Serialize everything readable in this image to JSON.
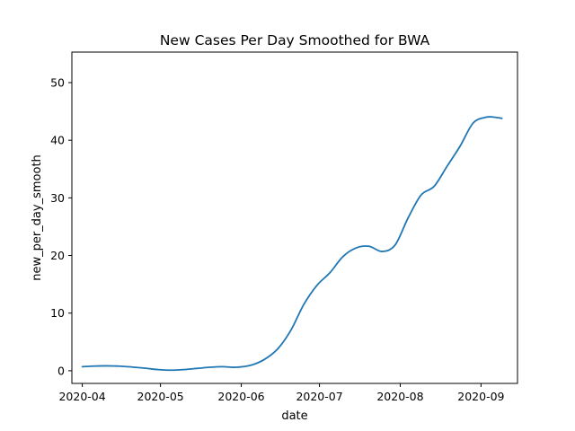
{
  "chart_data": {
    "type": "line",
    "title": "New Cases Per Day Smoothed for BWA",
    "xlabel": "date",
    "ylabel": "new_per_day_smooth",
    "xlim": [
      "2020-03-28",
      "2020-09-15"
    ],
    "ylim": [
      -2.2,
      55.3
    ],
    "x_ticks": [
      "2020-04",
      "2020-05",
      "2020-06",
      "2020-07",
      "2020-08",
      "2020-09"
    ],
    "y_ticks": [
      0,
      10,
      20,
      30,
      40,
      50
    ],
    "grid": false,
    "series_color": "#1f77b4",
    "series": [
      {
        "x": [
          "2020-04-01",
          "2020-04-05",
          "2020-04-10",
          "2020-04-15",
          "2020-04-20",
          "2020-04-25",
          "2020-04-30",
          "2020-05-05",
          "2020-05-10",
          "2020-05-15",
          "2020-05-20",
          "2020-05-25",
          "2020-05-30",
          "2020-06-05",
          "2020-06-10",
          "2020-06-15",
          "2020-06-20",
          "2020-06-25",
          "2020-06-30",
          "2020-07-05",
          "2020-07-10",
          "2020-07-15",
          "2020-07-20",
          "2020-07-25",
          "2020-07-30",
          "2020-08-04",
          "2020-08-09",
          "2020-08-14",
          "2020-08-19",
          "2020-08-24",
          "2020-08-29",
          "2020-09-03",
          "2020-09-06",
          "2020-09-09"
        ],
        "values": [
          0.7,
          0.8,
          0.85,
          0.8,
          0.65,
          0.45,
          0.2,
          0.1,
          0.2,
          0.4,
          0.6,
          0.7,
          0.6,
          1.0,
          2.0,
          3.8,
          7.0,
          11.5,
          14.8,
          17.0,
          19.8,
          21.3,
          21.6,
          20.7,
          21.8,
          26.5,
          30.5,
          32.0,
          35.5,
          39.0,
          43.0,
          44.0,
          44.0,
          43.8
        ]
      }
    ]
  }
}
